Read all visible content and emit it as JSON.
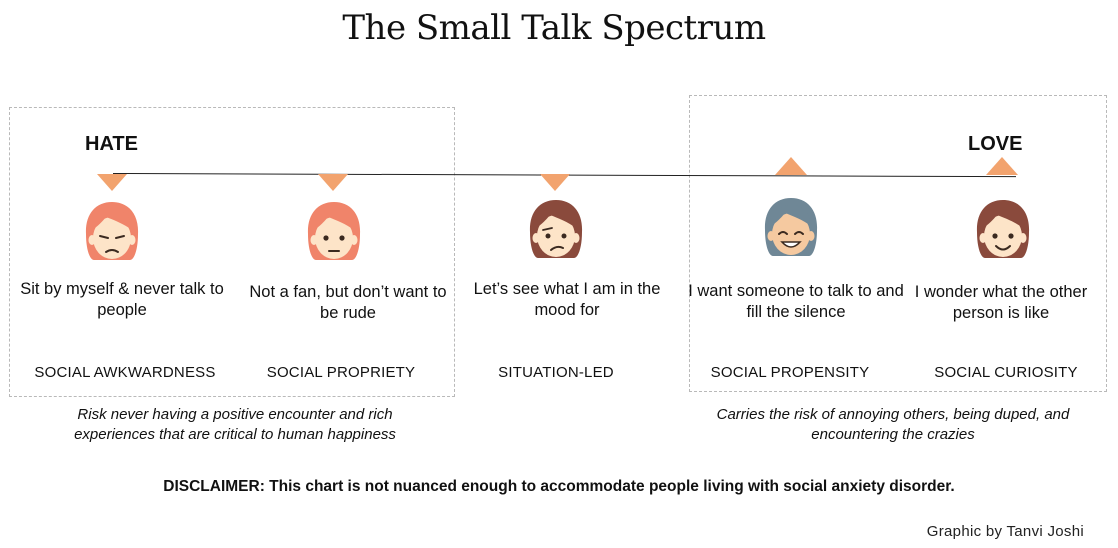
{
  "title": "The Small Talk Spectrum",
  "scale": {
    "left_label": "HATE",
    "right_label": "LOVE"
  },
  "colors": {
    "marker": "#f2a36e",
    "box_border": "#b9b9b9",
    "line": "#222222"
  },
  "stages": [
    {
      "statement": "Sit by myself & never talk to people",
      "category": "SOCIAL AWKWARDNESS",
      "face_icon": "sad-face-red-hair-icon"
    },
    {
      "statement": "Not a fan, but don’t want to be rude",
      "category": "SOCIAL PROPRIETY",
      "face_icon": "neutral-face-red-hair-icon"
    },
    {
      "statement": "Let’s see what I am in the mood for",
      "category": "SITUATION-LED",
      "face_icon": "thinking-face-brown-hair-icon"
    },
    {
      "statement": "I want someone to talk to and fill the silence",
      "category": "SOCIAL PROPENSITY",
      "face_icon": "grinning-face-gray-hair-icon"
    },
    {
      "statement": "I wonder what the other person is like",
      "category": "SOCIAL CURIOSITY",
      "face_icon": "smiling-face-brown-hair-icon"
    }
  ],
  "risks": {
    "left": "Risk never having a positive encounter and rich experiences that are critical to human happiness",
    "right": "Carries the risk of annoying others, being duped, and encountering the crazies"
  },
  "disclaimer": "DISCLAIMER: This chart is not nuanced enough to accommodate people living with social anxiety disorder.",
  "credit": "Graphic by Tanvi Joshi"
}
